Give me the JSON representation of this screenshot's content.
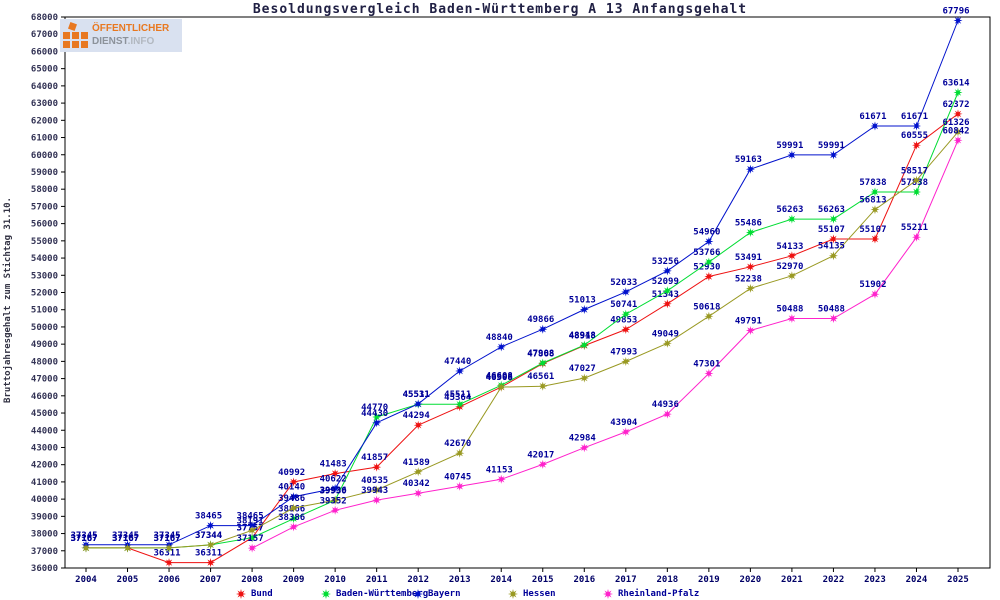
{
  "title": "Besoldungsvergleich Baden-Württemberg A 13 Anfangsgehalt",
  "logo": {
    "line1": "ÖFFENTLICHER",
    "line2_bold": "DIENST",
    "line2_light": ".INFO"
  },
  "y_axis": {
    "label": "Bruttojahresgehalt zum Stichtag 31.10.",
    "min": 36000,
    "max": 68000,
    "step": 1000
  },
  "x_axis": {
    "ticks": [
      "2004",
      "2005",
      "2006",
      "2007",
      "2008",
      "2009",
      "2010",
      "2011",
      "2012",
      "2013",
      "2014",
      "2015",
      "2016",
      "2017",
      "2018",
      "2019",
      "2020",
      "2021",
      "2022",
      "2023",
      "2024",
      "2025"
    ]
  },
  "colors": {
    "frame": "#000000",
    "point_label": "#000099",
    "axis_tick_label": "#333355",
    "year_label": "#000066",
    "legend_text": "#000099",
    "logo_orange": "#e87820",
    "logo_gray": "#8c929a",
    "logo_bg": "#d9e1f0"
  },
  "chart_data": {
    "type": "line",
    "title": "Besoldungsvergleich Baden-Württemberg A 13 Anfangsgehalt",
    "xlabel": "",
    "ylabel": "Bruttojahresgehalt zum Stichtag 31.10.",
    "ylim": [
      36000,
      68000
    ],
    "grid": false,
    "legend_position": "bottom",
    "point_labels_visible": true,
    "categories": [
      2004,
      2005,
      2006,
      2007,
      2008,
      2009,
      2010,
      2011,
      2012,
      2013,
      2014,
      2015,
      2016,
      2017,
      2018,
      2019,
      2020,
      2021,
      2022,
      2023,
      2024,
      2025
    ],
    "series": [
      {
        "name": "Bund",
        "color": "#ee1111",
        "values": [
          37167,
          37167,
          36311,
          36311,
          37757,
          40992,
          41483,
          41857,
          44294,
          45364,
          46508,
          47868,
          48918,
          49853,
          51343,
          52930,
          53491,
          54133,
          55107,
          55107,
          60555,
          62372
        ]
      },
      {
        "name": "Baden-Württemberg",
        "color": "#00dd33",
        "values": [
          37167,
          37167,
          37167,
          37344,
          37757,
          38866,
          39936,
          44770,
          45511,
          45511,
          46608,
          47908,
          48948,
          50741,
          52099,
          53766,
          55486,
          56263,
          56263,
          57838,
          57838,
          63614
        ]
      },
      {
        "name": "Bayern",
        "color": "#0011cc",
        "values": [
          37345,
          37345,
          37345,
          38465,
          38465,
          40140,
          40622,
          44430,
          45531,
          47440,
          48840,
          49866,
          51013,
          52033,
          53256,
          54960,
          59163,
          59991,
          59991,
          61671,
          61671,
          67796
        ]
      },
      {
        "name": "Hessen",
        "color": "#999922",
        "values": [
          37167,
          37167,
          37167,
          37344,
          38191,
          39486,
          39930,
          40535,
          41589,
          42670,
          46508,
          46561,
          47027,
          47993,
          49049,
          50618,
          52238,
          52970,
          54135,
          56813,
          58517,
          61326
        ]
      },
      {
        "name": "Rheinland-Pfalz",
        "color": "#ff22cc",
        "values": [
          null,
          null,
          null,
          null,
          37157,
          38386,
          39352,
          39943,
          40342,
          40745,
          41153,
          42017,
          42984,
          43904,
          44936,
          47301,
          49791,
          50488,
          50488,
          51902,
          55211,
          60842
        ]
      }
    ]
  }
}
